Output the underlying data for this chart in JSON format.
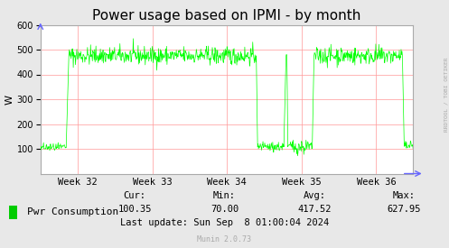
{
  "title": "Power usage based on IPMI - by month",
  "ylabel": "W",
  "ylim": [
    0,
    600
  ],
  "yticks": [
    100,
    200,
    300,
    400,
    500,
    600
  ],
  "line_color": "#00ff00",
  "background_color": "#e8e8e8",
  "plot_bg_color": "#ffffff",
  "grid_color": "#ff9999",
  "week_labels": [
    "Week 32",
    "Week 33",
    "Week 34",
    "Week 35",
    "Week 36"
  ],
  "legend_label": "Pwr Consumption",
  "legend_color": "#00cc00",
  "cur": "100.35",
  "min": "70.00",
  "avg": "417.52",
  "max": "627.95",
  "last_update": "Last update: Sun Sep  8 01:00:04 2024",
  "munin_version": "Munin 2.0.73",
  "rrdtool_label": "RRDTOOL / TOBI OETIKER",
  "title_fontsize": 11,
  "legend_fontsize": 8,
  "stats_fontsize": 7.5
}
